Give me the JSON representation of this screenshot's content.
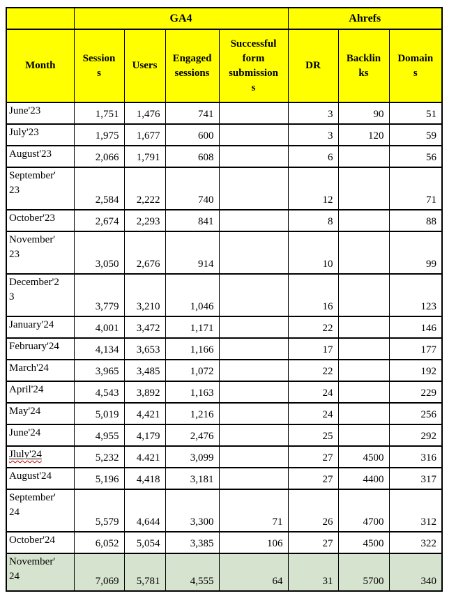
{
  "colors": {
    "header_background": "#ffff00",
    "highlight_row_background": "#d6e3ce",
    "grid_border": "#000000",
    "spellcheck_squiggle": "#cc0000",
    "text": "#000000"
  },
  "header": {
    "groups": [
      {
        "label": "",
        "span": 1
      },
      {
        "label": "GA4",
        "span": 4
      },
      {
        "label": "Ahrefs",
        "span": 3
      }
    ]
  },
  "table": {
    "columns": [
      {
        "id": "month",
        "label": "Month"
      },
      {
        "id": "sessions",
        "label": "Session\ns"
      },
      {
        "id": "users",
        "label": "Users"
      },
      {
        "id": "engaged_sessions",
        "label": "Engaged\nsessions"
      },
      {
        "id": "form_submissions",
        "label": "Successful\nform\nsubmission\ns"
      },
      {
        "id": "dr",
        "label": "DR"
      },
      {
        "id": "backlinks",
        "label": "Backlin\nks"
      },
      {
        "id": "domains",
        "label": "Domain\ns"
      }
    ],
    "rows": [
      {
        "month": "June'23",
        "sessions": "1,751",
        "users": "1,476",
        "engaged_sessions": "741",
        "form_submissions": "",
        "dr": "3",
        "backlinks": "90",
        "domains": "51",
        "highlight": false,
        "spellcheck_error": false
      },
      {
        "month": "July'23",
        "sessions": "1,975",
        "users": "1,677",
        "engaged_sessions": "600",
        "form_submissions": "",
        "dr": "3",
        "backlinks": "120",
        "domains": "59",
        "highlight": false,
        "spellcheck_error": false
      },
      {
        "month": "August'23",
        "sessions": "2,066",
        "users": "1,791",
        "engaged_sessions": "608",
        "form_submissions": "",
        "dr": "6",
        "backlinks": "",
        "domains": "56",
        "highlight": false,
        "spellcheck_error": false
      },
      {
        "month": "September'\n23",
        "sessions": "2,584",
        "users": "2,222",
        "engaged_sessions": "740",
        "form_submissions": "",
        "dr": "12",
        "backlinks": "",
        "domains": "71",
        "highlight": false,
        "spellcheck_error": false
      },
      {
        "month": "October'23",
        "sessions": "2,674",
        "users": "2,293",
        "engaged_sessions": "841",
        "form_submissions": "",
        "dr": "8",
        "backlinks": "",
        "domains": "88",
        "highlight": false,
        "spellcheck_error": false
      },
      {
        "month": "November'\n23",
        "sessions": "3,050",
        "users": "2,676",
        "engaged_sessions": "914",
        "form_submissions": "",
        "dr": "10",
        "backlinks": "",
        "domains": "99",
        "highlight": false,
        "spellcheck_error": false
      },
      {
        "month": "December'2\n3",
        "sessions": "3,779",
        "users": "3,210",
        "engaged_sessions": "1,046",
        "form_submissions": "",
        "dr": "16",
        "backlinks": "",
        "domains": "123",
        "highlight": false,
        "spellcheck_error": false
      },
      {
        "month": "January'24",
        "sessions": "4,001",
        "users": "3,472",
        "engaged_sessions": "1,171",
        "form_submissions": "",
        "dr": "22",
        "backlinks": "",
        "domains": "146",
        "highlight": false,
        "spellcheck_error": false
      },
      {
        "month": "February'24",
        "sessions": "4,134",
        "users": "3,653",
        "engaged_sessions": "1,166",
        "form_submissions": "",
        "dr": "17",
        "backlinks": "",
        "domains": "177",
        "highlight": false,
        "spellcheck_error": false
      },
      {
        "month": "March'24",
        "sessions": "3,965",
        "users": "3,485",
        "engaged_sessions": "1,072",
        "form_submissions": "",
        "dr": "22",
        "backlinks": "",
        "domains": "192",
        "highlight": false,
        "spellcheck_error": false
      },
      {
        "month": "April'24",
        "sessions": "4,543",
        "users": "3,892",
        "engaged_sessions": "1,163",
        "form_submissions": "",
        "dr": "24",
        "backlinks": "",
        "domains": "229",
        "highlight": false,
        "spellcheck_error": false
      },
      {
        "month": "May'24",
        "sessions": "5,019",
        "users": "4,421",
        "engaged_sessions": "1,216",
        "form_submissions": "",
        "dr": "24",
        "backlinks": "",
        "domains": "256",
        "highlight": false,
        "spellcheck_error": false
      },
      {
        "month": "June'24",
        "sessions": "4,955",
        "users": "4,179",
        "engaged_sessions": "2,476",
        "form_submissions": "",
        "dr": "25",
        "backlinks": "",
        "domains": "292",
        "highlight": false,
        "spellcheck_error": false
      },
      {
        "month": "Jluly'24",
        "sessions": "5,232",
        "users": "4.421",
        "engaged_sessions": "3,099",
        "form_submissions": "",
        "dr": "27",
        "backlinks": "4500",
        "domains": "316",
        "highlight": false,
        "spellcheck_error": true
      },
      {
        "month": "August'24",
        "sessions": "5,196",
        "users": "4,418",
        "engaged_sessions": "3,181",
        "form_submissions": "",
        "dr": "27",
        "backlinks": "4400",
        "domains": "317",
        "highlight": false,
        "spellcheck_error": false
      },
      {
        "month": "September'\n24",
        "sessions": "5,579",
        "users": "4,644",
        "engaged_sessions": "3,300",
        "form_submissions": "71",
        "dr": "26",
        "backlinks": "4700",
        "domains": "312",
        "highlight": false,
        "spellcheck_error": false
      },
      {
        "month": "October'24",
        "sessions": "6,052",
        "users": "5,054",
        "engaged_sessions": "3,385",
        "form_submissions": "106",
        "dr": "27",
        "backlinks": "4500",
        "domains": "322",
        "highlight": false,
        "spellcheck_error": false
      },
      {
        "month": "November'\n24",
        "sessions": "7,069",
        "users": "5,781",
        "engaged_sessions": "4,555",
        "form_submissions": "64",
        "dr": "31",
        "backlinks": "5700",
        "domains": "340",
        "highlight": true,
        "spellcheck_error": false
      }
    ]
  }
}
